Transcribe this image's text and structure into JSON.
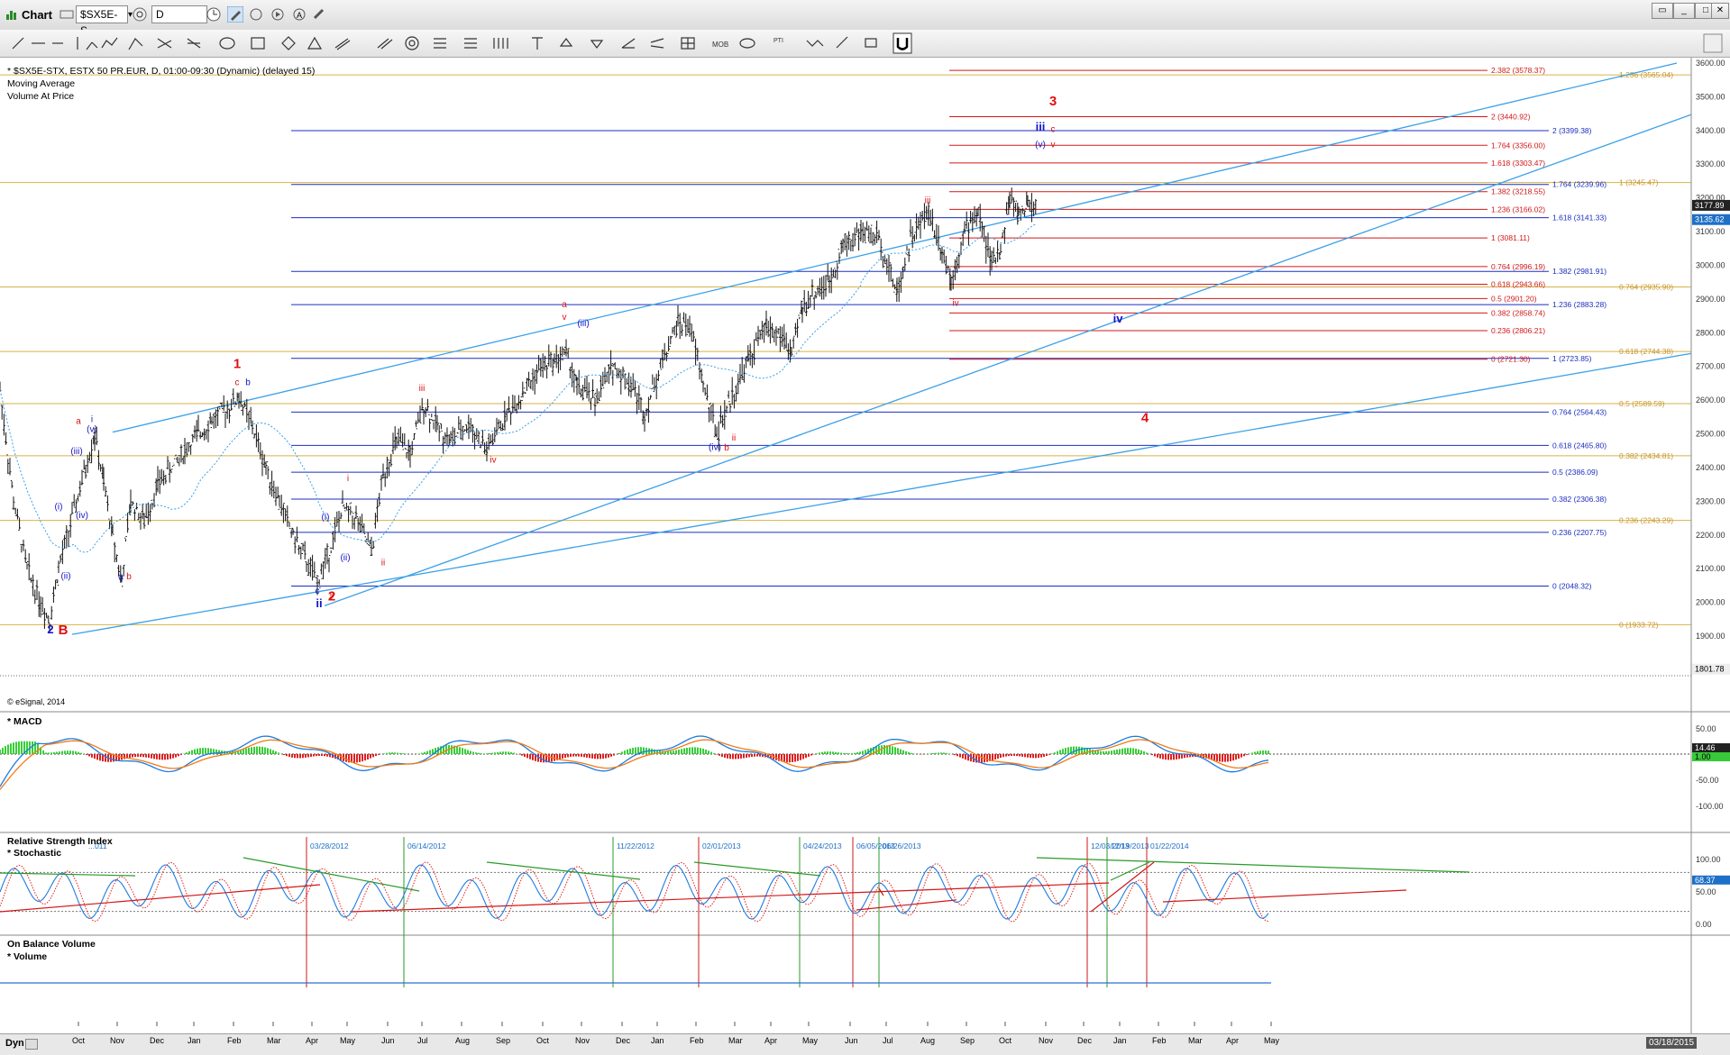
{
  "window": {
    "title": "Chart"
  },
  "toolbar": {
    "symbol": "$SX5E-S",
    "interval": "D"
  },
  "header": {
    "line1": "* $SX5E-STX, ESTX 50 PR.EUR, D, 01:00-09:30 (Dynamic) (delayed 15)",
    "line2": "Moving Average",
    "line3": "Volume At Price",
    "copyright": "© eSignal, 2014"
  },
  "panes": {
    "macd": "* MACD",
    "rsi1": "Relative Strength Index",
    "rsi2": "* Stochastic",
    "obv1": "On Balance Volume",
    "obv2": "* Volume"
  },
  "footer": {
    "left": "Dyn",
    "date_box": "03/18/2015"
  },
  "chart_data": {
    "type": "candlestick",
    "title": "$SX5E-STX, ESTX 50 PR.EUR, D",
    "x_labels": [
      "Oct",
      "Nov",
      "Dec",
      "Jan",
      "Feb",
      "Mar",
      "Apr",
      "May",
      "Jun",
      "Jul",
      "Aug",
      "Sep",
      "Oct",
      "Nov",
      "Dec",
      "Jan",
      "Feb",
      "Mar",
      "Apr",
      "May",
      "Jun",
      "Jul",
      "Aug",
      "Sep",
      "Oct",
      "Nov",
      "Dec",
      "Jan",
      "Feb",
      "Mar",
      "Apr",
      "May"
    ],
    "y_ticks": [
      1900,
      2000,
      2100,
      2200,
      2300,
      2400,
      2500,
      2600,
      2700,
      2800,
      2900,
      3000,
      3100,
      3200,
      3300,
      3400,
      3500,
      3600
    ],
    "ylim": [
      1801.78,
      3620
    ],
    "price_axis_tags": {
      "min_label": "1801.78",
      "last_price": "3177.89",
      "ma": "3135.62"
    },
    "price_path": [
      [
        0,
        2630
      ],
      [
        15,
        2300
      ],
      [
        30,
        2100
      ],
      [
        45,
        2000
      ],
      [
        55,
        1950
      ],
      [
        65,
        2100
      ],
      [
        80,
        2250
      ],
      [
        95,
        2400
      ],
      [
        105,
        2500
      ],
      [
        115,
        2350
      ],
      [
        125,
        2200
      ],
      [
        135,
        2060
      ],
      [
        145,
        2300
      ],
      [
        160,
        2240
      ],
      [
        175,
        2350
      ],
      [
        190,
        2400
      ],
      [
        205,
        2450
      ],
      [
        220,
        2500
      ],
      [
        235,
        2540
      ],
      [
        250,
        2570
      ],
      [
        265,
        2610
      ],
      [
        280,
        2520
      ],
      [
        295,
        2400
      ],
      [
        310,
        2300
      ],
      [
        325,
        2200
      ],
      [
        340,
        2120
      ],
      [
        352,
        2060
      ],
      [
        365,
        2150
      ],
      [
        380,
        2280
      ],
      [
        395,
        2250
      ],
      [
        412,
        2150
      ],
      [
        425,
        2380
      ],
      [
        440,
        2480
      ],
      [
        455,
        2440
      ],
      [
        470,
        2590
      ],
      [
        485,
        2520
      ],
      [
        500,
        2480
      ],
      [
        520,
        2530
      ],
      [
        540,
        2450
      ],
      [
        560,
        2550
      ],
      [
        580,
        2620
      ],
      [
        600,
        2700
      ],
      [
        615,
        2720
      ],
      [
        628,
        2740
      ],
      [
        640,
        2640
      ],
      [
        660,
        2600
      ],
      [
        680,
        2700
      ],
      [
        700,
        2650
      ],
      [
        715,
        2560
      ],
      [
        735,
        2720
      ],
      [
        752,
        2830
      ],
      [
        765,
        2820
      ],
      [
        780,
        2650
      ],
      [
        795,
        2500
      ],
      [
        810,
        2600
      ],
      [
        830,
        2720
      ],
      [
        850,
        2820
      ],
      [
        870,
        2780
      ],
      [
        878,
        2730
      ],
      [
        890,
        2880
      ],
      [
        905,
        2920
      ],
      [
        920,
        2950
      ],
      [
        935,
        3060
      ],
      [
        955,
        3100
      ],
      [
        975,
        3080
      ],
      [
        995,
        2920
      ],
      [
        1010,
        3080
      ],
      [
        1030,
        3160
      ],
      [
        1045,
        3050
      ],
      [
        1055,
        2960
      ],
      [
        1070,
        3100
      ],
      [
        1085,
        3160
      ],
      [
        1100,
        3000
      ],
      [
        1110,
        3050
      ],
      [
        1120,
        3200
      ],
      [
        1130,
        3150
      ],
      [
        1140,
        3180
      ],
      [
        1150,
        3178
      ]
    ],
    "blue_fib_levels": [
      {
        "label": "2 (3399.38)",
        "value": 3399.38
      },
      {
        "label": "1.764 (3239.96)",
        "value": 3239.96
      },
      {
        "label": "1.618 (3141.33)",
        "value": 3141.33
      },
      {
        "label": "1.382 (2981.91)",
        "value": 2981.91
      },
      {
        "label": "1.236 (2883.28)",
        "value": 2883.28
      },
      {
        "label": "1 (2723.85)",
        "value": 2723.85
      },
      {
        "label": "0.764 (2564.43)",
        "value": 2564.43
      },
      {
        "label": "0.618 (2465.80)",
        "value": 2465.8
      },
      {
        "label": "0.5 (2386.09)",
        "value": 2386.09
      },
      {
        "label": "0.382 (2306.38)",
        "value": 2306.38
      },
      {
        "label": "0.236 (2207.75)",
        "value": 2207.75
      },
      {
        "label": "0 (2048.32)",
        "value": 2048.32
      }
    ],
    "red_fib_levels": [
      {
        "label": "2.382 (3578.37)",
        "value": 3578.37
      },
      {
        "label": "2 (3440.92)",
        "value": 3440.92
      },
      {
        "label": "1.764 (3356.00)",
        "value": 3356.0
      },
      {
        "label": "1.618 (3303.47)",
        "value": 3303.47
      },
      {
        "label": "1.382 (3218.55)",
        "value": 3218.55
      },
      {
        "label": "1.236 (3166.02)",
        "value": 3166.02
      },
      {
        "label": "1 (3081.11)",
        "value": 3081.11
      },
      {
        "label": "0.764 (2996.19)",
        "value": 2996.19
      },
      {
        "label": "0.618 (2943.66)",
        "value": 2943.66
      },
      {
        "label": "0.5 (2901.20)",
        "value": 2901.2
      },
      {
        "label": "0.382 (2858.74)",
        "value": 2858.74
      },
      {
        "label": "0.236 (2806.21)",
        "value": 2806.21
      },
      {
        "label": "0 (2721.30)",
        "value": 2721.3
      }
    ],
    "gold_fib_levels": [
      {
        "label": "1.236 (3565.04)",
        "value": 3565.04
      },
      {
        "label": "1 (3245.47)",
        "value": 3245.47
      },
      {
        "label": "0.764 (2935.90)",
        "value": 2935.9
      },
      {
        "label": "0.618 (2744.38)",
        "value": 2744.38
      },
      {
        "label": "0.5 (2589.59)",
        "value": 2589.59
      },
      {
        "label": "0.382 (2434.81)",
        "value": 2434.81
      },
      {
        "label": "0.236 (2243.29)",
        "value": 2243.29
      },
      {
        "label": "0 (1933.72)",
        "value": 1933.72
      }
    ],
    "wave_labels_red_big": [
      {
        "text": "1",
        "x": 263,
        "v": 2695
      },
      {
        "text": "2",
        "x": 368,
        "v": 2005
      },
      {
        "text": "3",
        "x": 1168,
        "v": 3475
      },
      {
        "text": "4",
        "x": 1270,
        "v": 2535
      },
      {
        "text": "B",
        "x": 70,
        "v": 1905
      }
    ],
    "wave_labels_blue_big": [
      {
        "text": "2",
        "x": 56,
        "v": 1908
      },
      {
        "text": "iii",
        "x": 1154,
        "v": 3400
      },
      {
        "text": "iv",
        "x": 1240,
        "v": 2830
      },
      {
        "text": "ii",
        "x": 354,
        "v": 1985
      }
    ],
    "wave_labels_red_small": [
      {
        "text": "a",
        "x": 87,
        "v": 2530
      },
      {
        "text": "c",
        "x": 263,
        "v": 2645
      },
      {
        "text": "b",
        "x": 143,
        "v": 2068
      },
      {
        "text": "2",
        "x": 368,
        "v": 2005
      },
      {
        "text": "a",
        "x": 626,
        "v": 2875
      },
      {
        "text": "v",
        "x": 626,
        "v": 2838
      },
      {
        "text": "iii",
        "x": 468,
        "v": 2627
      },
      {
        "text": "i",
        "x": 386,
        "v": 2360
      },
      {
        "text": "ii",
        "x": 425,
        "v": 2110
      },
      {
        "text": "iv",
        "x": 547,
        "v": 2415
      },
      {
        "text": "ii",
        "x": 814,
        "v": 2480
      },
      {
        "text": "b",
        "x": 806,
        "v": 2450
      },
      {
        "text": "iii",
        "x": 1029,
        "v": 3185
      },
      {
        "text": "iv",
        "x": 1060,
        "v": 2880
      },
      {
        "text": "c",
        "x": 1168,
        "v": 3395
      },
      {
        "text": "v",
        "x": 1168,
        "v": 3350
      }
    ],
    "wave_labels_blue_small": [
      {
        "text": "i",
        "x": 102,
        "v": 2535
      },
      {
        "text": "(v)",
        "x": 102,
        "v": 2505
      },
      {
        "text": "(iii)",
        "x": 85,
        "v": 2440
      },
      {
        "text": "(i)",
        "x": 65,
        "v": 2275
      },
      {
        "text": "(iv)",
        "x": 91,
        "v": 2250
      },
      {
        "text": "(ii)",
        "x": 73,
        "v": 2070
      },
      {
        "text": "a",
        "x": 134,
        "v": 2068
      },
      {
        "text": "b",
        "x": 275,
        "v": 2645
      },
      {
        "text": "c",
        "x": 352,
        "v": 2025
      },
      {
        "text": "(i)",
        "x": 361,
        "v": 2245
      },
      {
        "text": "(ii)",
        "x": 383,
        "v": 2125
      },
      {
        "text": "(iii)",
        "x": 647,
        "v": 2820
      },
      {
        "text": "(iv)",
        "x": 793,
        "v": 2452
      },
      {
        "text": "(v)",
        "x": 1154,
        "v": 3350
      }
    ],
    "macd_ticks": [
      50.0,
      14.46,
      1.0,
      -50.0,
      -100.0
    ],
    "stoch_ticks": [
      100,
      68.37,
      50.0,
      0.0
    ],
    "stoch_dates": [
      "03/28/2012",
      "06/14/2012",
      "11/22/2012",
      "02/01/2013",
      "04/24/2013",
      "06/05/2013",
      "06/26/2013",
      "12/03/2013",
      "12/19/2013",
      "01/22/2014"
    ],
    "stoch_partial": "...011"
  }
}
